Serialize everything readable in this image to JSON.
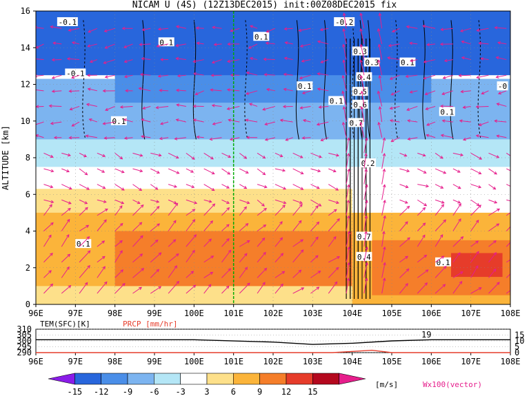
{
  "title": "NICAM U (4S) (12Z13DEC2015) init:00Z08DEC2015 fix",
  "colors": {
    "shading": [
      "#8a1ce8",
      "#2866dc",
      "#4a8ee8",
      "#7cb4f0",
      "#b4e6f6",
      "#ffffff",
      "#fde08a",
      "#fbb43a",
      "#f57e2a",
      "#e63c2a",
      "#b4081e",
      "#e61e8c"
    ],
    "vector": "#e61e8c",
    "dashline": "#00aa00",
    "temp": "#000000",
    "prcp": "#e63c2a"
  },
  "chart_data": [
    {
      "type": "heatmap",
      "title": "NICAM U (4S) (12Z13DEC2015) init:00Z08DEC2015 fix",
      "xlabel": "",
      "ylabel": "ALTITUDE [km]",
      "xticks": [
        "96E",
        "97E",
        "98E",
        "99E",
        "100E",
        "101E",
        "102E",
        "103E",
        "104E",
        "105E",
        "106E",
        "107E",
        "108E"
      ],
      "yticks": [
        "0",
        "2",
        "4",
        "6",
        "8",
        "10",
        "12",
        "14",
        "16"
      ],
      "xlim": [
        96,
        108
      ],
      "ylim": [
        0,
        16
      ],
      "grid": true,
      "contour_labels": [
        "-0.1",
        "0.1",
        "-0.2",
        "0.3",
        "0.4",
        "0.5",
        "0.6",
        "0.7",
        "0.2",
        "-0"
      ],
      "layers": [
        {
          "z": [
            0,
            0.3
          ],
          "x": [
            96,
            108
          ],
          "u": 3
        },
        {
          "z": [
            0.3,
            6.3
          ],
          "x": [
            96,
            104
          ],
          "u": 5
        },
        {
          "z": [
            1,
            5
          ],
          "x": [
            96,
            104
          ],
          "u": 7
        },
        {
          "z": [
            1,
            4
          ],
          "x": [
            98,
            104
          ],
          "u": 9
        },
        {
          "z": [
            1.5,
            3.5
          ],
          "x": [
            101,
            103.5
          ],
          "u": 11
        },
        {
          "z": [
            0,
            5
          ],
          "x": [
            104,
            108
          ],
          "u": 7
        },
        {
          "z": [
            0.5,
            3.5
          ],
          "x": [
            104.5,
            108
          ],
          "u": 11
        },
        {
          "z": [
            1.5,
            2.8
          ],
          "x": [
            106.5,
            107.8
          ],
          "u": 14
        },
        {
          "z": [
            7.5,
            10.5
          ],
          "x": [
            96,
            108
          ],
          "u": -4
        },
        {
          "z": [
            9,
            12.3
          ],
          "x": [
            96,
            108
          ],
          "u": -8
        },
        {
          "z": [
            11,
            13
          ],
          "x": [
            98,
            106
          ],
          "u": -11
        },
        {
          "z": [
            12.5,
            16
          ],
          "x": [
            96,
            108
          ],
          "u": -15
        }
      ],
      "vertical_line_x": 101,
      "legend": "Wx100(vector)"
    },
    {
      "type": "line",
      "title": "",
      "series": [
        {
          "name": "TEM(SFC)[K]",
          "x": [
            96,
            100,
            102,
            103,
            104,
            105,
            106,
            108
          ],
          "values": [
            301,
            301,
            299,
            297,
            298,
            300,
            301,
            301
          ]
        },
        {
          "name": "PRCP [mm/hr]",
          "x": [
            96,
            103.5,
            104,
            104.5,
            105,
            108
          ],
          "values": [
            0,
            0,
            1,
            2,
            0,
            0
          ]
        }
      ],
      "yticks_left": [
        "290",
        "295",
        "300",
        "305",
        "310"
      ],
      "yticks_right": [
        "0",
        "5",
        "10",
        "15"
      ],
      "ylim": [
        290,
        310
      ],
      "annotation": "19"
    }
  ],
  "colorbar": {
    "ticks": [
      "-15",
      "-12",
      "-9",
      "-6",
      "-3",
      "3",
      "6",
      "9",
      "12",
      "15"
    ],
    "unit": "[m/s]"
  }
}
